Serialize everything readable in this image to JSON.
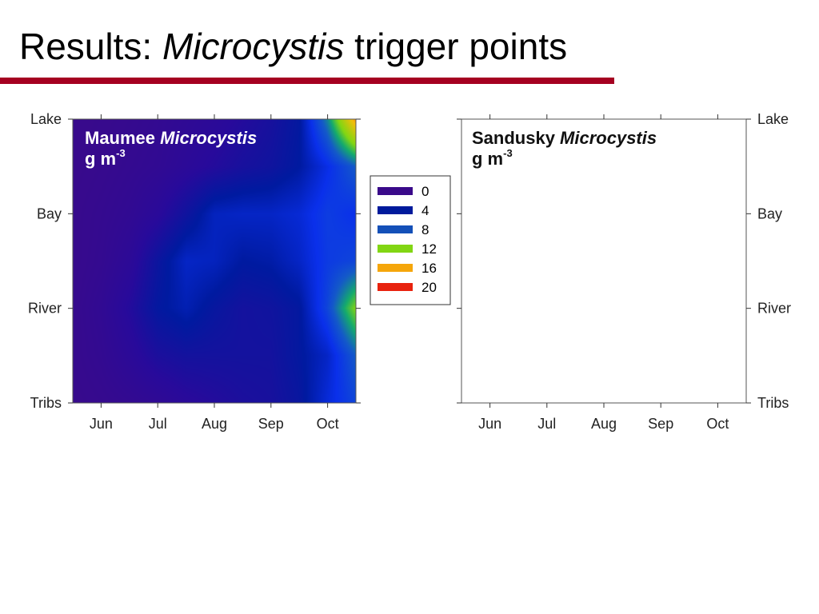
{
  "slide": {
    "title_prefix": "Results: ",
    "title_italic": "Microcystis",
    "title_suffix": " trigger points",
    "rule_color": "#a50021"
  },
  "chart_data": [
    {
      "type": "heatmap",
      "site": "Maumee",
      "title_plain": "Maumee ",
      "title_italic": "Microcystis",
      "unit_base": "g m",
      "unit_exp": "-3",
      "x_ticks": [
        "Jun",
        "Jul",
        "Aug",
        "Sep",
        "Oct"
      ],
      "y_ticks": [
        "Lake",
        "Bay",
        "River",
        "Tribs"
      ],
      "y_axis_side": "left",
      "x": [
        0,
        0.5,
        1,
        1.5,
        2,
        2.5,
        3,
        3.5,
        4,
        4.5,
        5
      ],
      "y": [
        "Tribs",
        "",
        "River",
        "",
        "Bay",
        "",
        "Lake"
      ],
      "values": [
        [
          0.3,
          0.5,
          0.8,
          1.2,
          1.8,
          2.2,
          2.6,
          2.8,
          3.5,
          5.5,
          7.0
        ],
        [
          0.4,
          0.8,
          1.6,
          2.6,
          3.0,
          3.0,
          3.0,
          3.0,
          3.8,
          5.0,
          8.0
        ],
        [
          0.4,
          1.0,
          2.2,
          3.8,
          4.5,
          3.6,
          3.0,
          3.2,
          3.8,
          7.0,
          12.0
        ],
        [
          0.3,
          0.7,
          1.5,
          3.4,
          5.0,
          4.8,
          4.0,
          4.2,
          5.0,
          6.5,
          7.0
        ],
        [
          0.3,
          0.6,
          1.0,
          1.8,
          3.2,
          4.8,
          5.0,
          5.0,
          5.4,
          6.6,
          6.0
        ],
        [
          0.2,
          0.4,
          0.7,
          1.0,
          1.6,
          2.2,
          2.8,
          3.2,
          4.0,
          5.8,
          8.0
        ],
        [
          0.2,
          0.3,
          0.5,
          0.8,
          1.2,
          1.6,
          2.2,
          2.8,
          3.8,
          9.0,
          17.0
        ]
      ],
      "zlim": [
        0,
        20
      ]
    },
    {
      "type": "heatmap",
      "site": "Sandusky",
      "title_plain": "Sandusky ",
      "title_italic": "Microcystis",
      "unit_base": "g m",
      "unit_exp": "-3",
      "x_ticks": [
        "Jun",
        "Jul",
        "Aug",
        "Sep",
        "Oct"
      ],
      "y_ticks": [
        "Lake",
        "Bay",
        "River",
        "Tribs"
      ],
      "y_axis_side": "right",
      "values": []
    }
  ],
  "legend": {
    "placement": "between panels",
    "entries": [
      {
        "label": "0",
        "color": "#3a0a8a"
      },
      {
        "label": "4",
        "color": "#001a9c"
      },
      {
        "label": "8",
        "color": "#1450b8"
      },
      {
        "label": "12",
        "color": "#82d613"
      },
      {
        "label": "16",
        "color": "#f5a60a"
      },
      {
        "label": "20",
        "color": "#e8220e"
      }
    ]
  }
}
